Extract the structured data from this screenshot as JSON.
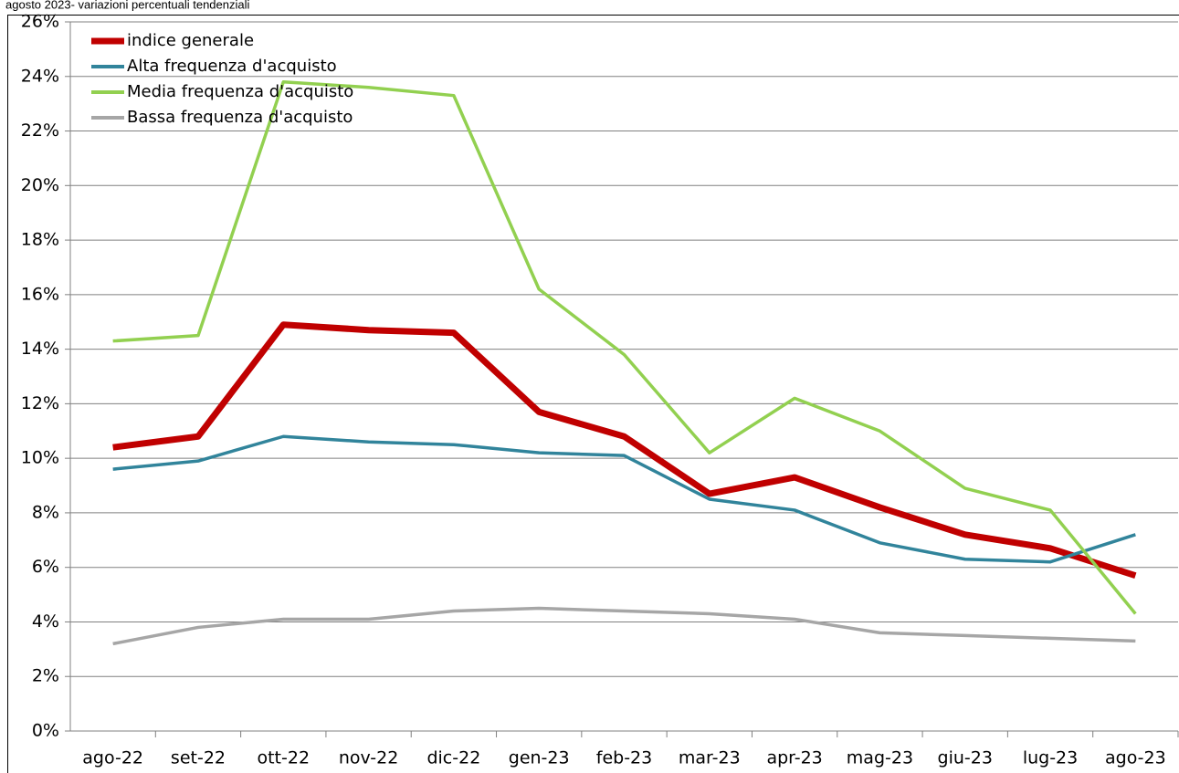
{
  "chart_data": {
    "type": "line",
    "title": "agosto 2023- variazioni percentuali tendenziali",
    "categories": [
      "ago-22",
      "set-22",
      "ott-22",
      "nov-22",
      "dic-22",
      "gen-23",
      "feb-23",
      "mar-23",
      "apr-23",
      "mag-23",
      "giu-23",
      "lug-23",
      "ago-23"
    ],
    "series": [
      {
        "name": "indice generale",
        "color": "#c00000",
        "values": [
          10.4,
          10.8,
          14.9,
          14.7,
          14.6,
          11.7,
          10.8,
          8.7,
          9.3,
          8.2,
          7.2,
          6.7,
          5.7
        ]
      },
      {
        "name": "Alta frequenza d'acquisto",
        "color": "#31849b",
        "values": [
          9.6,
          9.9,
          10.8,
          10.6,
          10.5,
          10.2,
          10.1,
          8.5,
          8.1,
          6.9,
          6.3,
          6.2,
          7.2
        ]
      },
      {
        "name": "Media frequenza d'acquisto",
        "color": "#92d050",
        "values": [
          14.3,
          14.5,
          23.8,
          23.6,
          23.3,
          16.2,
          13.8,
          10.2,
          12.2,
          11.0,
          8.9,
          8.1,
          4.3
        ]
      },
      {
        "name": "Bassa frequenza d'acquisto",
        "color": "#a6a6a6",
        "values": [
          3.2,
          3.8,
          4.1,
          4.1,
          4.4,
          4.5,
          4.4,
          4.3,
          4.1,
          3.6,
          3.5,
          3.4,
          3.3
        ]
      }
    ],
    "ylim": [
      0,
      26
    ],
    "yticks": [
      {
        "value": 0,
        "label": "0%"
      },
      {
        "value": 2,
        "label": "2%"
      },
      {
        "value": 4,
        "label": "4%"
      },
      {
        "value": 6,
        "label": "6%"
      },
      {
        "value": 8,
        "label": "8%"
      },
      {
        "value": 10,
        "label": "10%"
      },
      {
        "value": 12,
        "label": "12%"
      },
      {
        "value": 14,
        "label": "14%"
      },
      {
        "value": 16,
        "label": "16%"
      },
      {
        "value": 18,
        "label": "18%"
      },
      {
        "value": 20,
        "label": "20%"
      },
      {
        "value": 22,
        "label": "22%"
      },
      {
        "value": 24,
        "label": "24%"
      },
      {
        "value": 26,
        "label": "26%"
      }
    ],
    "grid": true,
    "legend": "top-left"
  }
}
